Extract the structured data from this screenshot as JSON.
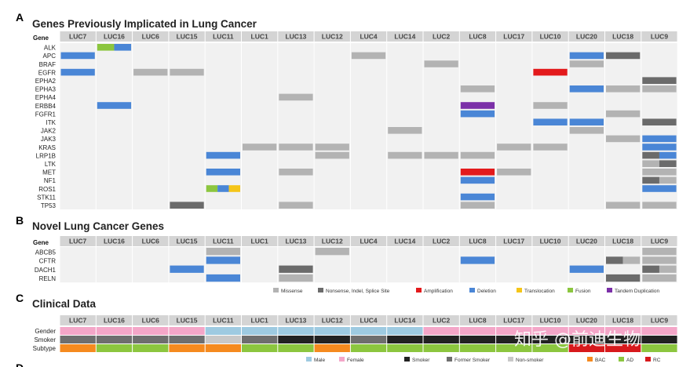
{
  "panels": {
    "A": {
      "letter": "A",
      "title": "Genes Previously Implicated in Lung Cancer",
      "gene_header": "Gene"
    },
    "B": {
      "letter": "B",
      "title": "Novel Lung Cancer Genes",
      "gene_header": "Gene"
    },
    "C": {
      "letter": "C",
      "title": "Clinical Data"
    },
    "D": {
      "letter": "D"
    }
  },
  "samples": [
    "LUC7",
    "LUC16",
    "LUC6",
    "LUC15",
    "LUC11",
    "LUC1",
    "LUC13",
    "LUC12",
    "LUC4",
    "LUC14",
    "LUC2",
    "LUC8",
    "LUC17",
    "LUC10",
    "LUC20",
    "LUC18",
    "LUC9"
  ],
  "colors": {
    "missense": "#b3b3b3",
    "nonsense": "#6b6b6b",
    "amplification": "#e31a1c",
    "deletion": "#4a86d6",
    "translocation": "#f5c518",
    "fusion": "#8cc63f",
    "tandem": "#7b2fa8",
    "empty": "#f1f1f1",
    "header": "#d4d4d4",
    "male": "#9ecae1",
    "female": "#f4a6c8",
    "smoker": "#222222",
    "former_smoker": "#6e6e6e",
    "non_smoker": "#c8c8c8",
    "bac": "#f58a1f",
    "ad": "#8cc63f",
    "rc": "#d7191c"
  },
  "panel_a": {
    "genes": [
      "ALK",
      "APC",
      "BRAF",
      "EGFR",
      "EPHA2",
      "EPHA3",
      "EPHA4",
      "ERBB4",
      "FGFR1",
      "ITK",
      "JAK2",
      "JAK3",
      "KRAS",
      "LRP1B",
      "LTK",
      "MET",
      "NF1",
      "ROS1",
      "STK11",
      "TP53"
    ],
    "cells": [
      {
        "gene": "ALK",
        "col": 1,
        "parts": [
          "fusion",
          "deletion"
        ]
      },
      {
        "gene": "APC",
        "col": 0,
        "parts": [
          "deletion"
        ]
      },
      {
        "gene": "APC",
        "col": 8,
        "parts": [
          "missense"
        ]
      },
      {
        "gene": "APC",
        "col": 14,
        "parts": [
          "deletion"
        ]
      },
      {
        "gene": "APC",
        "col": 15,
        "parts": [
          "nonsense"
        ]
      },
      {
        "gene": "BRAF",
        "col": 10,
        "parts": [
          "missense"
        ]
      },
      {
        "gene": "BRAF",
        "col": 14,
        "parts": [
          "missense"
        ]
      },
      {
        "gene": "EGFR",
        "col": 0,
        "parts": [
          "deletion"
        ]
      },
      {
        "gene": "EGFR",
        "col": 2,
        "parts": [
          "missense"
        ]
      },
      {
        "gene": "EGFR",
        "col": 3,
        "parts": [
          "missense"
        ]
      },
      {
        "gene": "EGFR",
        "col": 13,
        "parts": [
          "amplification"
        ]
      },
      {
        "gene": "EPHA2",
        "col": 16,
        "parts": [
          "nonsense"
        ]
      },
      {
        "gene": "EPHA3",
        "col": 11,
        "parts": [
          "missense"
        ]
      },
      {
        "gene": "EPHA3",
        "col": 14,
        "parts": [
          "deletion"
        ]
      },
      {
        "gene": "EPHA3",
        "col": 15,
        "parts": [
          "missense"
        ]
      },
      {
        "gene": "EPHA3",
        "col": 16,
        "parts": [
          "missense"
        ]
      },
      {
        "gene": "EPHA4",
        "col": 6,
        "parts": [
          "missense"
        ]
      },
      {
        "gene": "ERBB4",
        "col": 1,
        "parts": [
          "deletion"
        ]
      },
      {
        "gene": "ERBB4",
        "col": 11,
        "parts": [
          "tandem"
        ]
      },
      {
        "gene": "ERBB4",
        "col": 13,
        "parts": [
          "missense"
        ]
      },
      {
        "gene": "FGFR1",
        "col": 11,
        "parts": [
          "deletion"
        ]
      },
      {
        "gene": "FGFR1",
        "col": 15,
        "parts": [
          "missense"
        ]
      },
      {
        "gene": "ITK",
        "col": 13,
        "parts": [
          "deletion"
        ]
      },
      {
        "gene": "ITK",
        "col": 14,
        "parts": [
          "deletion"
        ]
      },
      {
        "gene": "ITK",
        "col": 16,
        "parts": [
          "nonsense"
        ]
      },
      {
        "gene": "JAK2",
        "col": 9,
        "parts": [
          "missense"
        ]
      },
      {
        "gene": "JAK2",
        "col": 14,
        "parts": [
          "missense"
        ]
      },
      {
        "gene": "JAK3",
        "col": 15,
        "parts": [
          "missense"
        ]
      },
      {
        "gene": "JAK3",
        "col": 16,
        "parts": [
          "deletion"
        ]
      },
      {
        "gene": "KRAS",
        "col": 5,
        "parts": [
          "missense"
        ]
      },
      {
        "gene": "KRAS",
        "col": 6,
        "parts": [
          "missense"
        ]
      },
      {
        "gene": "KRAS",
        "col": 7,
        "parts": [
          "missense"
        ]
      },
      {
        "gene": "KRAS",
        "col": 12,
        "parts": [
          "missense"
        ]
      },
      {
        "gene": "KRAS",
        "col": 13,
        "parts": [
          "missense"
        ]
      },
      {
        "gene": "KRAS",
        "col": 16,
        "parts": [
          "deletion"
        ]
      },
      {
        "gene": "LRP1B",
        "col": 4,
        "parts": [
          "deletion"
        ]
      },
      {
        "gene": "LRP1B",
        "col": 7,
        "parts": [
          "missense"
        ]
      },
      {
        "gene": "LRP1B",
        "col": 9,
        "parts": [
          "missense"
        ]
      },
      {
        "gene": "LRP1B",
        "col": 10,
        "parts": [
          "missense"
        ]
      },
      {
        "gene": "LRP1B",
        "col": 11,
        "parts": [
          "missense"
        ]
      },
      {
        "gene": "LRP1B",
        "col": 16,
        "parts": [
          "nonsense",
          "deletion"
        ]
      },
      {
        "gene": "LTK",
        "col": 16,
        "parts": [
          "missense",
          "nonsense"
        ]
      },
      {
        "gene": "MET",
        "col": 4,
        "parts": [
          "deletion"
        ]
      },
      {
        "gene": "MET",
        "col": 6,
        "parts": [
          "missense"
        ]
      },
      {
        "gene": "MET",
        "col": 11,
        "parts": [
          "amplification"
        ]
      },
      {
        "gene": "MET",
        "col": 12,
        "parts": [
          "missense"
        ]
      },
      {
        "gene": "MET",
        "col": 16,
        "parts": [
          "missense"
        ]
      },
      {
        "gene": "NF1",
        "col": 11,
        "parts": [
          "deletion"
        ]
      },
      {
        "gene": "NF1",
        "col": 16,
        "parts": [
          "nonsense",
          "missense"
        ]
      },
      {
        "gene": "ROS1",
        "col": 4,
        "parts": [
          "fusion",
          "deletion",
          "translocation"
        ]
      },
      {
        "gene": "ROS1",
        "col": 16,
        "parts": [
          "deletion"
        ]
      },
      {
        "gene": "STK11",
        "col": 11,
        "parts": [
          "deletion"
        ]
      },
      {
        "gene": "TP53",
        "col": 3,
        "parts": [
          "nonsense"
        ]
      },
      {
        "gene": "TP53",
        "col": 6,
        "parts": [
          "missense"
        ]
      },
      {
        "gene": "TP53",
        "col": 11,
        "parts": [
          "missense"
        ]
      },
      {
        "gene": "TP53",
        "col": 15,
        "parts": [
          "missense"
        ]
      },
      {
        "gene": "TP53",
        "col": 16,
        "parts": [
          "missense"
        ]
      }
    ]
  },
  "panel_b": {
    "genes": [
      "ABCB5",
      "CFTR",
      "DACH1",
      "RELN"
    ],
    "cells": [
      {
        "gene": "ABCB5",
        "col": 4,
        "parts": [
          "missense"
        ]
      },
      {
        "gene": "ABCB5",
        "col": 7,
        "parts": [
          "missense"
        ]
      },
      {
        "gene": "ABCB5",
        "col": 16,
        "parts": [
          "missense"
        ]
      },
      {
        "gene": "CFTR",
        "col": 4,
        "parts": [
          "deletion"
        ]
      },
      {
        "gene": "CFTR",
        "col": 11,
        "parts": [
          "deletion"
        ]
      },
      {
        "gene": "CFTR",
        "col": 15,
        "parts": [
          "nonsense",
          "missense"
        ]
      },
      {
        "gene": "CFTR",
        "col": 16,
        "parts": [
          "missense"
        ]
      },
      {
        "gene": "DACH1",
        "col": 3,
        "parts": [
          "deletion"
        ]
      },
      {
        "gene": "DACH1",
        "col": 6,
        "parts": [
          "nonsense"
        ]
      },
      {
        "gene": "DACH1",
        "col": 14,
        "parts": [
          "deletion"
        ]
      },
      {
        "gene": "DACH1",
        "col": 16,
        "parts": [
          "nonsense",
          "missense"
        ]
      },
      {
        "gene": "RELN",
        "col": 4,
        "parts": [
          "deletion"
        ]
      },
      {
        "gene": "RELN",
        "col": 6,
        "parts": [
          "missense"
        ]
      },
      {
        "gene": "RELN",
        "col": 15,
        "parts": [
          "nonsense"
        ]
      },
      {
        "gene": "RELN",
        "col": 16,
        "parts": [
          "missense"
        ]
      }
    ]
  },
  "mutation_legend": [
    {
      "key": "missense",
      "label": "Missense"
    },
    {
      "key": "nonsense",
      "label": "Nonsense, Indel, Splice Site"
    },
    {
      "key": "amplification",
      "label": "Amplification"
    },
    {
      "key": "deletion",
      "label": "Deletion"
    },
    {
      "key": "translocation",
      "label": "Translocation"
    },
    {
      "key": "fusion",
      "label": "Fusion"
    },
    {
      "key": "tandem",
      "label": "Tandem Duplication"
    }
  ],
  "panel_c": {
    "rows": [
      {
        "label": "Gender",
        "values": [
          "female",
          "female",
          "female",
          "female",
          "male",
          "male",
          "male",
          "male",
          "male",
          "male",
          "female",
          "female",
          "female",
          "female",
          "female",
          "female",
          "female"
        ]
      },
      {
        "label": "Smoker",
        "values": [
          "former_smoker",
          "former_smoker",
          "former_smoker",
          "former_smoker",
          "non_smoker",
          "former_smoker",
          "smoker",
          "smoker",
          "former_smoker",
          "smoker",
          "smoker",
          "smoker",
          "smoker",
          "smoker",
          "smoker",
          "smoker",
          "smoker"
        ]
      },
      {
        "label": "Subtype",
        "values": [
          "bac",
          "ad",
          "ad",
          "bac",
          "bac",
          "ad",
          "ad",
          "bac",
          "ad",
          "ad",
          "ad",
          "ad",
          "ad",
          "ad",
          "rc",
          "rc",
          "ad"
        ]
      }
    ],
    "legend_sex": [
      {
        "key": "male",
        "label": "Male"
      },
      {
        "key": "female",
        "label": "Female"
      }
    ],
    "legend_smoke": [
      {
        "key": "smoker",
        "label": "Smoker"
      },
      {
        "key": "former_smoker",
        "label": "Former Smoker"
      },
      {
        "key": "non_smoker",
        "label": "Non-smoker"
      }
    ],
    "legend_subtype": [
      {
        "key": "bac",
        "label": "BAC"
      },
      {
        "key": "ad",
        "label": "AD"
      },
      {
        "key": "rc",
        "label": "RC"
      }
    ]
  },
  "watermark": "知乎 @前迪生物"
}
